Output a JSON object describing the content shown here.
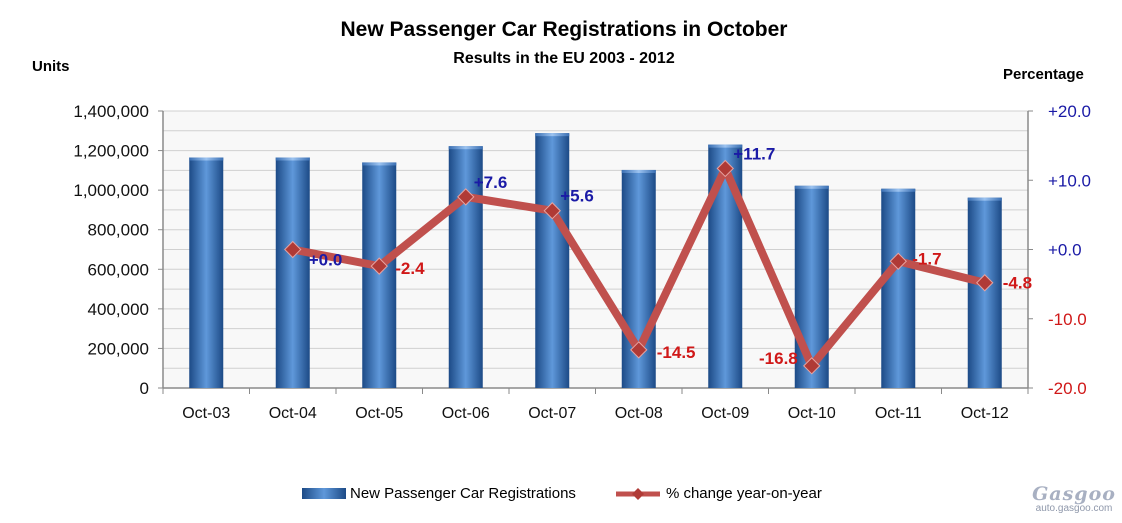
{
  "chart_data": {
    "type": "bar",
    "title": "New Passenger Car Registrations in October",
    "subtitle": "Results in the EU 2003 - 2012",
    "ylabel_left": "Units",
    "ylabel_right": "Percentage",
    "categories": [
      "Oct-03",
      "Oct-04",
      "Oct-05",
      "Oct-06",
      "Oct-07",
      "Oct-08",
      "Oct-09",
      "Oct-10",
      "Oct-11",
      "Oct-12"
    ],
    "series": [
      {
        "name": "New Passenger Car Registrations",
        "type": "bar",
        "axis": "left",
        "values": [
          1165000,
          1165000,
          1140000,
          1222000,
          1288000,
          1102000,
          1230000,
          1022000,
          1007000,
          962000
        ]
      },
      {
        "name": "% change year-on-year",
        "type": "line",
        "axis": "right",
        "values": [
          null,
          0.0,
          -2.4,
          7.6,
          5.6,
          -14.5,
          11.7,
          -16.8,
          -1.7,
          -4.8
        ],
        "labels": [
          null,
          "+0.0",
          "-2.4",
          "+7.6",
          "+5.6",
          "-14.5",
          "+11.7",
          "-16.8",
          "-1.7",
          "-4.8"
        ]
      }
    ],
    "ylim_left": [
      0,
      1400000
    ],
    "yticks_left": [
      "0",
      "200,000",
      "400,000",
      "600,000",
      "800,000",
      "1,000,000",
      "1,200,000",
      "1,400,000"
    ],
    "ylim_right": [
      -20,
      20
    ],
    "yticks_right": [
      "-20.0",
      "-10.0",
      "+0.0",
      "+10.0",
      "+20.0"
    ],
    "grid": true,
    "legend_position": "bottom",
    "colors": {
      "bar_dark": "#1c4a86",
      "bar_light": "#5f98da",
      "line": "#c0504d",
      "marker": "#b03a36",
      "positive_label": "#1a1aa6",
      "negative_label": "#d01818",
      "right_axis_text": "#1a1aa6",
      "right_axis_text_negative": "#d01818",
      "plot_background": "#f8f8f8",
      "grid": "#d0d0d0"
    }
  },
  "watermark": {
    "brand": "Gasgoo",
    "url": "auto.gasgoo.com"
  }
}
